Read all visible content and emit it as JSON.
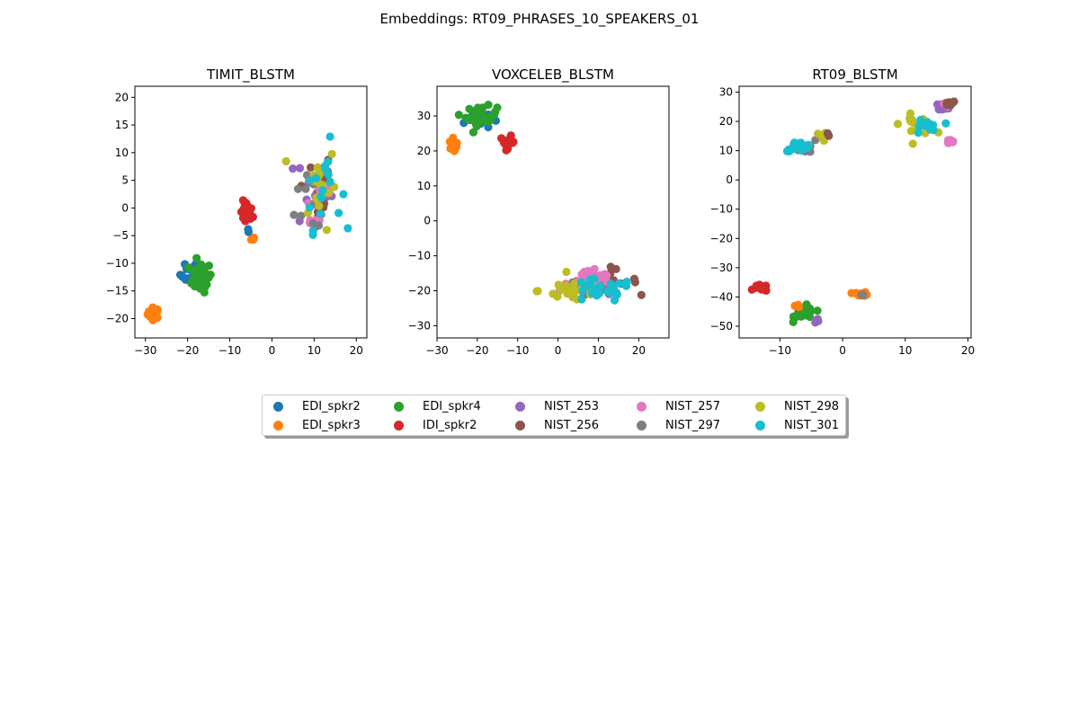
{
  "figure": {
    "suptitle": "Embeddings: RT09_PHRASES_10_SPEAKERS_01"
  },
  "colors": {
    "EDI_spkr2": "#1f77b4",
    "EDI_spkr3": "#ff7f0e",
    "EDI_spkr4": "#2ca02c",
    "IDI_spkr2": "#d62728",
    "NIST_253": "#9467bd",
    "NIST_256": "#8c564b",
    "NIST_257": "#e377c2",
    "NIST_297": "#7f7f7f",
    "NIST_298": "#bcbd22",
    "NIST_301": "#17becf"
  },
  "legend": {
    "placement": "below plots, centered",
    "columns": 5,
    "entries": [
      "EDI_spkr2",
      "EDI_spkr3",
      "EDI_spkr4",
      "IDI_spkr2",
      "NIST_253",
      "NIST_256",
      "NIST_257",
      "NIST_297",
      "NIST_298",
      "NIST_301"
    ]
  },
  "chart_data": [
    {
      "type": "scatter",
      "title": "TIMIT_BLSTM",
      "xlabel": "",
      "ylabel": "",
      "xlim": [
        -32.5,
        22.5
      ],
      "ylim": [
        -23.5,
        22
      ],
      "xticks": [
        -30,
        -20,
        -10,
        0,
        10,
        20
      ],
      "yticks": [
        -20,
        -15,
        -10,
        -5,
        0,
        5,
        10,
        15,
        20
      ],
      "grid": false,
      "clusters": [
        {
          "series": "EDI_spkr3",
          "cx": -28,
          "cy": -19,
          "sx": 1.3,
          "sy": 0.9,
          "n": 30
        },
        {
          "series": "EDI_spkr2",
          "cx": -19,
          "cy": -12,
          "sx": 2.5,
          "sy": 2.2,
          "n": 16
        },
        {
          "series": "EDI_spkr4",
          "cx": -17,
          "cy": -12.5,
          "sx": 2.5,
          "sy": 2.5,
          "n": 32
        },
        {
          "series": "IDI_spkr2",
          "cx": -6,
          "cy": -1,
          "sx": 1.3,
          "sy": 2,
          "n": 26
        },
        {
          "series": "EDI_spkr3",
          "cx": -4.5,
          "cy": -5.5,
          "sx": 0.4,
          "sy": 0.3,
          "n": 3
        },
        {
          "series": "EDI_spkr2",
          "cx": -5.5,
          "cy": -4,
          "sx": 0.4,
          "sy": 0.5,
          "n": 2
        },
        {
          "series": "NIST_253",
          "cx": 10,
          "cy": 3,
          "sx": 4,
          "sy": 7,
          "n": 14
        },
        {
          "series": "NIST_256",
          "cx": 10,
          "cy": 3,
          "sx": 4,
          "sy": 7,
          "n": 14
        },
        {
          "series": "NIST_257",
          "cx": 11,
          "cy": 2,
          "sx": 4,
          "sy": 7,
          "n": 16
        },
        {
          "series": "NIST_297",
          "cx": 10,
          "cy": 2,
          "sx": 4,
          "sy": 7,
          "n": 10
        },
        {
          "series": "NIST_298",
          "cx": 11,
          "cy": 4,
          "sx": 4,
          "sy": 7,
          "n": 18
        },
        {
          "series": "NIST_301",
          "cx": 12,
          "cy": 4,
          "sx": 4,
          "sy": 7,
          "n": 18
        }
      ]
    },
    {
      "type": "scatter",
      "title": "VOXCELEB_BLSTM",
      "xlabel": "",
      "ylabel": "",
      "xlim": [
        -30,
        27.5
      ],
      "ylim": [
        -33.5,
        38.5
      ],
      "xticks": [
        -30,
        -20,
        -10,
        0,
        10,
        20
      ],
      "yticks": [
        -30,
        -20,
        -10,
        0,
        10,
        20,
        30
      ],
      "grid": false,
      "clusters": [
        {
          "series": "EDI_spkr3",
          "cx": -26,
          "cy": 21.5,
          "sx": 0.8,
          "sy": 1.8,
          "n": 20
        },
        {
          "series": "EDI_spkr2",
          "cx": -20,
          "cy": 29,
          "sx": 3,
          "sy": 2.5,
          "n": 14
        },
        {
          "series": "EDI_spkr4",
          "cx": -19,
          "cy": 30,
          "sx": 3.5,
          "sy": 2.5,
          "n": 32
        },
        {
          "series": "IDI_spkr2",
          "cx": -12.5,
          "cy": 22.5,
          "sx": 1.6,
          "sy": 1.6,
          "n": 24
        },
        {
          "series": "NIST_253",
          "cx": 10,
          "cy": -18,
          "sx": 7,
          "sy": 3,
          "n": 12
        },
        {
          "series": "NIST_256",
          "cx": 12,
          "cy": -17,
          "sx": 7,
          "sy": 3,
          "n": 18
        },
        {
          "series": "NIST_257",
          "cx": 8,
          "cy": -17,
          "sx": 7,
          "sy": 3,
          "n": 22
        },
        {
          "series": "NIST_297",
          "cx": 9,
          "cy": -19,
          "sx": 7,
          "sy": 3,
          "n": 12
        },
        {
          "series": "NIST_298",
          "cx": 4,
          "cy": -20,
          "sx": 8,
          "sy": 3,
          "n": 26
        },
        {
          "series": "NIST_301",
          "cx": 10,
          "cy": -20,
          "sx": 8,
          "sy": 3,
          "n": 24
        }
      ]
    },
    {
      "type": "scatter",
      "title": "RT09_BLSTM",
      "xlabel": "",
      "ylabel": "",
      "xlim": [
        -16.5,
        20.5
      ],
      "ylim": [
        -54,
        32
      ],
      "xticks": [
        -10,
        0,
        10,
        20
      ],
      "yticks": [
        -50,
        -40,
        -30,
        -20,
        -10,
        0,
        10,
        20,
        30
      ],
      "grid": false,
      "clusters": [
        {
          "series": "IDI_spkr2",
          "cx": -13,
          "cy": -37,
          "sx": 1,
          "sy": 1,
          "n": 18
        },
        {
          "series": "EDI_spkr2",
          "cx": -6.5,
          "cy": -45,
          "sx": 1,
          "sy": 1.5,
          "n": 10
        },
        {
          "series": "EDI_spkr4",
          "cx": -6,
          "cy": -45.5,
          "sx": 1.5,
          "sy": 2.2,
          "n": 28
        },
        {
          "series": "NIST_253",
          "cx": -4,
          "cy": -48,
          "sx": 0.6,
          "sy": 0.8,
          "n": 4
        },
        {
          "series": "EDI_spkr3",
          "cx": 3,
          "cy": -39,
          "sx": 1,
          "sy": 0.6,
          "n": 18
        },
        {
          "series": "EDI_spkr3",
          "cx": -7,
          "cy": -43,
          "sx": 0.5,
          "sy": 0.5,
          "n": 3
        },
        {
          "series": "NIST_297",
          "cx": 3,
          "cy": -39.5,
          "sx": 0.4,
          "sy": 0.3,
          "n": 2
        },
        {
          "series": "NIST_297",
          "cx": -5,
          "cy": 11,
          "sx": 2,
          "sy": 2,
          "n": 8
        },
        {
          "series": "NIST_301",
          "cx": -7,
          "cy": 11.5,
          "sx": 2,
          "sy": 1.5,
          "n": 18
        },
        {
          "series": "NIST_298",
          "cx": -3,
          "cy": 15,
          "sx": 1.3,
          "sy": 1.2,
          "n": 8
        },
        {
          "series": "NIST_256",
          "cx": -2.5,
          "cy": 15.5,
          "sx": 0.5,
          "sy": 0.5,
          "n": 2
        },
        {
          "series": "NIST_298",
          "cx": 12,
          "cy": 19,
          "sx": 2.5,
          "sy": 3,
          "n": 16
        },
        {
          "series": "NIST_301",
          "cx": 13,
          "cy": 18,
          "sx": 2,
          "sy": 3,
          "n": 12
        },
        {
          "series": "NIST_253",
          "cx": 16,
          "cy": 25,
          "sx": 1,
          "sy": 1,
          "n": 10
        },
        {
          "series": "NIST_257",
          "cx": 16.5,
          "cy": 26,
          "sx": 0.8,
          "sy": 0.8,
          "n": 10
        },
        {
          "series": "NIST_256",
          "cx": 17,
          "cy": 26,
          "sx": 0.7,
          "sy": 0.7,
          "n": 8
        },
        {
          "series": "NIST_257",
          "cx": 17,
          "cy": 13,
          "sx": 0.8,
          "sy": 0.7,
          "n": 12
        }
      ]
    }
  ]
}
